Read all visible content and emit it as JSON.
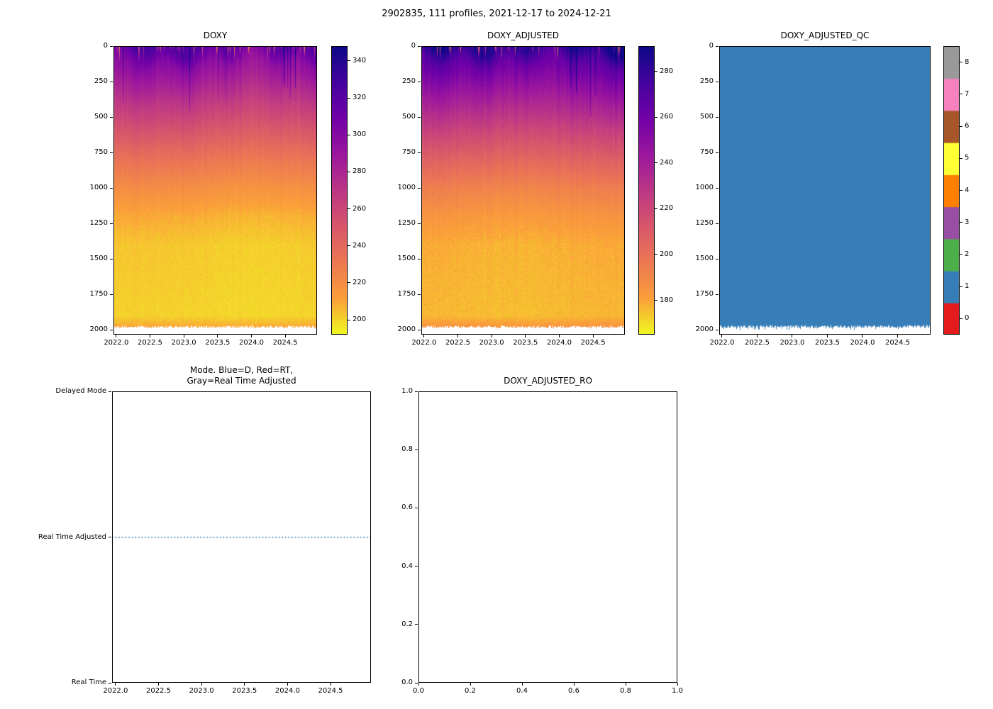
{
  "figure": {
    "title": "2902835, 111 profiles, 2021-12-17 to 2024-12-21"
  },
  "chart_data": [
    {
      "id": "doxy",
      "type": "heatmap",
      "title": "DOXY",
      "x_range": [
        2021.96,
        2024.97
      ],
      "x_ticks": [
        2022.0,
        2022.5,
        2023.0,
        2023.5,
        2024.0,
        2024.5
      ],
      "x_tick_labels": [
        "2022.0",
        "2022.5",
        "2023.0",
        "2023.5",
        "2024.0",
        "2024.5"
      ],
      "y_range": [
        0,
        2035
      ],
      "y_inverted": true,
      "y_ticks": [
        0,
        250,
        500,
        750,
        1000,
        1250,
        1500,
        1750,
        2000
      ],
      "y_tick_labels": [
        "0",
        "250",
        "500",
        "750",
        "1000",
        "1250",
        "1500",
        "1750",
        "2000"
      ],
      "colormap": "plasma_r",
      "colorbar_range": [
        192,
        348
      ],
      "colorbar_ticks": [
        200,
        220,
        240,
        260,
        280,
        300,
        320,
        340
      ],
      "colorbar_tick_labels": [
        "200",
        "220",
        "240",
        "260",
        "280",
        "300",
        "320",
        "340"
      ],
      "profile": {
        "depths": [
          0,
          50,
          120,
          250,
          400,
          600,
          800,
          1000,
          1200,
          1400,
          1900,
          1960,
          2035
        ],
        "values": [
          322,
          312,
          298,
          284,
          268,
          250,
          233,
          219,
          208,
          202,
          200,
          207,
          222
        ]
      },
      "description": "Dissolved oxygen vs time and depth: high (~320, dark purple) near surface grading to low (~200, yellow) below ~1200 m; thin orange band and ragged white data gap near 2000 m"
    },
    {
      "id": "doxy_adjusted",
      "type": "heatmap",
      "title": "DOXY_ADJUSTED",
      "x_range": [
        2021.96,
        2024.97
      ],
      "x_ticks": [
        2022.0,
        2022.5,
        2023.0,
        2023.5,
        2024.0,
        2024.5
      ],
      "x_tick_labels": [
        "2022.0",
        "2022.5",
        "2023.0",
        "2023.5",
        "2024.0",
        "2024.5"
      ],
      "y_range": [
        0,
        2035
      ],
      "y_inverted": true,
      "y_ticks": [
        0,
        250,
        500,
        750,
        1000,
        1250,
        1500,
        1750,
        2000
      ],
      "y_tick_labels": [
        "0",
        "250",
        "500",
        "750",
        "1000",
        "1250",
        "1500",
        "1750",
        "2000"
      ],
      "colormap": "plasma_r",
      "colorbar_range": [
        165,
        291
      ],
      "colorbar_ticks": [
        180,
        200,
        220,
        240,
        260,
        280
      ],
      "colorbar_tick_labels": [
        "180",
        "200",
        "220",
        "240",
        "260",
        "280"
      ],
      "profile": {
        "depths": [
          0,
          50,
          120,
          250,
          400,
          600,
          800,
          1000,
          1200,
          1400,
          1900,
          1960,
          2035
        ],
        "values": [
          287,
          278,
          265,
          252,
          238,
          221,
          206,
          193,
          184,
          178,
          176,
          182,
          196
        ]
      },
      "description": "Adjusted dissolved oxygen section, same structure as DOXY with colorbar ~165-290"
    },
    {
      "id": "doxy_adjusted_qc",
      "type": "heatmap",
      "title": "DOXY_ADJUSTED_QC",
      "x_range": [
        2021.96,
        2024.97
      ],
      "x_ticks": [
        2022.0,
        2022.5,
        2023.0,
        2023.5,
        2024.0,
        2024.5
      ],
      "x_tick_labels": [
        "2022.0",
        "2022.5",
        "2023.0",
        "2023.5",
        "2024.0",
        "2024.5"
      ],
      "y_range": [
        0,
        2035
      ],
      "y_inverted": true,
      "y_ticks": [
        0,
        250,
        500,
        750,
        1000,
        1250,
        1500,
        1750,
        2000
      ],
      "y_tick_labels": [
        "0",
        "250",
        "500",
        "750",
        "1000",
        "1250",
        "1500",
        "1750",
        "2000"
      ],
      "constant_value": 1,
      "qc_fill_color": "#377eb8",
      "colorbar_categories": [
        0,
        1,
        2,
        3,
        4,
        5,
        6,
        7,
        8
      ],
      "colorbar_tick_labels": [
        "0",
        "1",
        "2",
        "3",
        "4",
        "5",
        "6",
        "7",
        "8"
      ],
      "colorbar_colors": [
        "#e41a1c",
        "#377eb8",
        "#4daf4a",
        "#984ea3",
        "#ff7f00",
        "#ffff33",
        "#a65628",
        "#f781bf",
        "#999999"
      ],
      "description": "QC flags: entire section equals 1 (blue) with ragged white data gap near 2000 m"
    },
    {
      "id": "mode",
      "type": "line",
      "title": "Mode. Blue=D, Red=RT,\nGray=Real Time Adjusted",
      "x_range": [
        2021.96,
        2024.97
      ],
      "x_ticks": [
        2022.0,
        2022.5,
        2023.0,
        2023.5,
        2024.0,
        2024.5
      ],
      "x_tick_labels": [
        "2022.0",
        "2022.5",
        "2023.0",
        "2023.5",
        "2024.0",
        "2024.5"
      ],
      "y_categories": [
        "Delayed Mode",
        "Real Time Adjusted",
        "Real Time"
      ],
      "series": [
        {
          "name": "processing-mode",
          "color": "#1f77b4",
          "linestyle": "dotted",
          "constant_category": "Real Time Adjusted",
          "x_span": [
            2021.96,
            2024.97
          ]
        }
      ],
      "description": "All 111 profiles are Real Time Adjusted: a dotted blue horizontal line at the middle category"
    },
    {
      "id": "doxy_adjusted_ro",
      "type": "empty",
      "title": "DOXY_ADJUSTED_RO",
      "x_range": [
        0.0,
        1.0
      ],
      "x_ticks": [
        0.0,
        0.2,
        0.4,
        0.6,
        0.8,
        1.0
      ],
      "x_tick_labels": [
        "0.0",
        "0.2",
        "0.4",
        "0.6",
        "0.8",
        "1.0"
      ],
      "y_range": [
        0.0,
        1.0
      ],
      "y_ticks": [
        0.0,
        0.2,
        0.4,
        0.6,
        0.8,
        1.0
      ],
      "y_tick_labels": [
        "0.0",
        "0.2",
        "0.4",
        "0.6",
        "0.8",
        "1.0"
      ],
      "series": [],
      "description": "Empty axes, no data plotted"
    }
  ]
}
